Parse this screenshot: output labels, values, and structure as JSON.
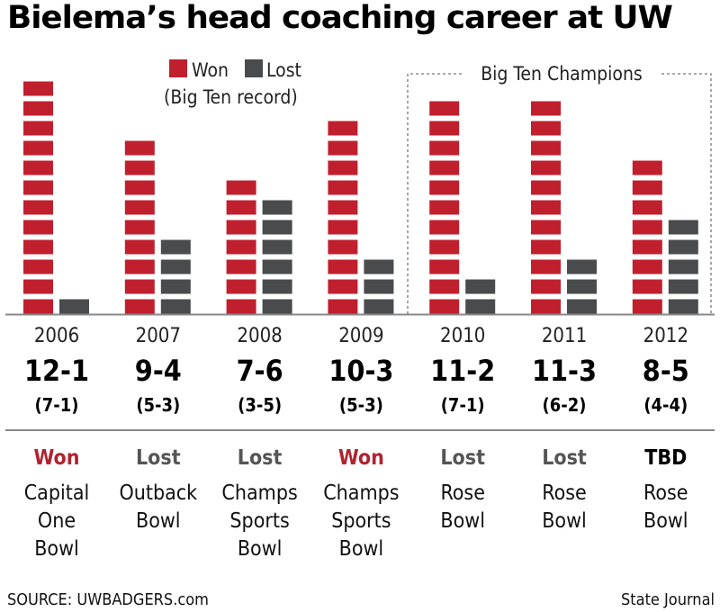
{
  "title": "Bielema’s head coaching career at UW",
  "colors": {
    "won": "#c0202e",
    "lost": "#4a4b4d",
    "result_won": "#b0232e",
    "result_lost": "#555555",
    "result_tbd": "#000000"
  },
  "legend": {
    "won_label": "Won",
    "lost_label": "Lost",
    "note": "(Big Ten record)"
  },
  "champions_label": "Big Ten Champions",
  "chart_data": {
    "type": "bar",
    "categories": [
      "2006",
      "2007",
      "2008",
      "2009",
      "2010",
      "2011",
      "2012"
    ],
    "series": [
      {
        "name": "Won",
        "values": [
          12,
          9,
          7,
          10,
          11,
          11,
          8
        ]
      },
      {
        "name": "Lost",
        "values": [
          1,
          4,
          6,
          3,
          2,
          3,
          5
        ]
      }
    ],
    "records": [
      "12-1",
      "9-4",
      "7-6",
      "10-3",
      "11-2",
      "11-3",
      "8-5"
    ],
    "big_ten_records": [
      "(7-1)",
      "(5-3)",
      "(3-5)",
      "(5-3)",
      "(7-1)",
      "(6-2)",
      "(4-4)"
    ],
    "bowl_results": [
      "Won",
      "Lost",
      "Lost",
      "Won",
      "Lost",
      "Lost",
      "TBD"
    ],
    "bowls": [
      [
        "Capital",
        "One",
        "Bowl"
      ],
      [
        "Outback",
        "Bowl"
      ],
      [
        "Champs",
        "Sports",
        "Bowl"
      ],
      [
        "Champs",
        "Sports",
        "Bowl"
      ],
      [
        "Rose",
        "Bowl"
      ],
      [
        "Rose",
        "Bowl"
      ],
      [
        "Rose",
        "Bowl"
      ]
    ],
    "highlight_categories": [
      "2010",
      "2011",
      "2012"
    ],
    "legend_position": "top-center",
    "grid": false
  },
  "footer": {
    "source": "SOURCE: UWBADGERS.com",
    "credit": "State Journal"
  }
}
